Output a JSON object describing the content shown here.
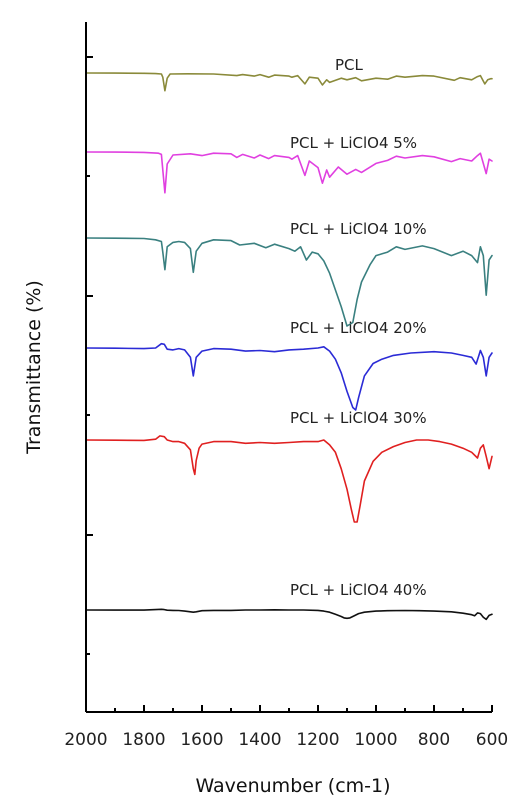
{
  "chart_data": {
    "type": "line",
    "title": "",
    "xlabel": "Wavenumber (cm-1)",
    "ylabel": "Transmittance (%)",
    "xlim": [
      2000,
      600
    ],
    "x_reversed": true,
    "x_ticks": [
      "2000",
      "1800",
      "1600",
      "1400",
      "1200",
      "1000",
      "800",
      "600"
    ],
    "y_tick_labels_shown": false,
    "grid": false,
    "legend": "none",
    "series_layout": "stacked traces with offsets, labeled directly above each trace",
    "series": [
      {
        "name": "PCL",
        "color": "#8a8a3a",
        "points": [
          [
            2000,
            0.0
          ],
          [
            1900,
            0.002
          ],
          [
            1800,
            0.006
          ],
          [
            1760,
            0.012
          ],
          [
            1740,
            0.02
          ],
          [
            1735,
            0.08
          ],
          [
            1728,
            0.34
          ],
          [
            1720,
            0.1
          ],
          [
            1710,
            0.02
          ],
          [
            1650,
            0.016
          ],
          [
            1560,
            0.02
          ],
          [
            1480,
            0.05
          ],
          [
            1460,
            0.03
          ],
          [
            1420,
            0.06
          ],
          [
            1400,
            0.03
          ],
          [
            1370,
            0.08
          ],
          [
            1350,
            0.04
          ],
          [
            1300,
            0.06
          ],
          [
            1290,
            0.08
          ],
          [
            1270,
            0.05
          ],
          [
            1245,
            0.21
          ],
          [
            1230,
            0.08
          ],
          [
            1200,
            0.1
          ],
          [
            1185,
            0.23
          ],
          [
            1170,
            0.13
          ],
          [
            1160,
            0.18
          ],
          [
            1120,
            0.1
          ],
          [
            1100,
            0.13
          ],
          [
            1070,
            0.09
          ],
          [
            1050,
            0.15
          ],
          [
            1000,
            0.1
          ],
          [
            960,
            0.12
          ],
          [
            930,
            0.06
          ],
          [
            900,
            0.08
          ],
          [
            840,
            0.05
          ],
          [
            800,
            0.06
          ],
          [
            730,
            0.14
          ],
          [
            710,
            0.09
          ],
          [
            670,
            0.13
          ],
          [
            650,
            0.07
          ],
          [
            640,
            0.05
          ],
          [
            625,
            0.21
          ],
          [
            615,
            0.13
          ],
          [
            605,
            0.11
          ],
          [
            600,
            0.11
          ]
        ]
      },
      {
        "name": "PCL + LiClO4 5%",
        "color": "#e040e0",
        "points": [
          [
            2000,
            0.0
          ],
          [
            1900,
            0.001
          ],
          [
            1800,
            0.006
          ],
          [
            1750,
            0.02
          ],
          [
            1740,
            0.04
          ],
          [
            1735,
            0.3
          ],
          [
            1728,
            0.68
          ],
          [
            1720,
            0.2
          ],
          [
            1700,
            0.05
          ],
          [
            1640,
            0.03
          ],
          [
            1600,
            0.06
          ],
          [
            1560,
            0.02
          ],
          [
            1500,
            0.03
          ],
          [
            1480,
            0.09
          ],
          [
            1460,
            0.04
          ],
          [
            1420,
            0.1
          ],
          [
            1400,
            0.05
          ],
          [
            1370,
            0.11
          ],
          [
            1350,
            0.06
          ],
          [
            1300,
            0.09
          ],
          [
            1290,
            0.12
          ],
          [
            1270,
            0.06
          ],
          [
            1245,
            0.39
          ],
          [
            1230,
            0.15
          ],
          [
            1200,
            0.26
          ],
          [
            1185,
            0.52
          ],
          [
            1170,
            0.3
          ],
          [
            1160,
            0.42
          ],
          [
            1130,
            0.25
          ],
          [
            1100,
            0.37
          ],
          [
            1070,
            0.29
          ],
          [
            1050,
            0.34
          ],
          [
            1000,
            0.19
          ],
          [
            960,
            0.14
          ],
          [
            930,
            0.07
          ],
          [
            900,
            0.1
          ],
          [
            840,
            0.06
          ],
          [
            800,
            0.08
          ],
          [
            740,
            0.16
          ],
          [
            710,
            0.11
          ],
          [
            670,
            0.15
          ],
          [
            650,
            0.06
          ],
          [
            640,
            0.02
          ],
          [
            630,
            0.19
          ],
          [
            620,
            0.36
          ],
          [
            610,
            0.12
          ],
          [
            600,
            0.15
          ]
        ]
      },
      {
        "name": "PCL + LiClO4 10%",
        "color": "#3a8080",
        "points": [
          [
            2000,
            0.0
          ],
          [
            1900,
            0.002
          ],
          [
            1800,
            0.006
          ],
          [
            1760,
            0.02
          ],
          [
            1740,
            0.04
          ],
          [
            1735,
            0.16
          ],
          [
            1728,
            0.36
          ],
          [
            1720,
            0.1
          ],
          [
            1700,
            0.05
          ],
          [
            1680,
            0.04
          ],
          [
            1660,
            0.05
          ],
          [
            1640,
            0.12
          ],
          [
            1630,
            0.39
          ],
          [
            1620,
            0.15
          ],
          [
            1600,
            0.06
          ],
          [
            1560,
            0.02
          ],
          [
            1500,
            0.03
          ],
          [
            1470,
            0.08
          ],
          [
            1420,
            0.06
          ],
          [
            1380,
            0.11
          ],
          [
            1350,
            0.07
          ],
          [
            1300,
            0.12
          ],
          [
            1280,
            0.15
          ],
          [
            1260,
            0.1
          ],
          [
            1240,
            0.25
          ],
          [
            1220,
            0.16
          ],
          [
            1200,
            0.18
          ],
          [
            1180,
            0.26
          ],
          [
            1160,
            0.4
          ],
          [
            1120,
            0.78
          ],
          [
            1100,
            1.0
          ],
          [
            1080,
            0.96
          ],
          [
            1065,
            0.7
          ],
          [
            1050,
            0.5
          ],
          [
            1020,
            0.3
          ],
          [
            1000,
            0.2
          ],
          [
            960,
            0.16
          ],
          [
            930,
            0.1
          ],
          [
            900,
            0.13
          ],
          [
            840,
            0.09
          ],
          [
            800,
            0.12
          ],
          [
            740,
            0.2
          ],
          [
            700,
            0.15
          ],
          [
            670,
            0.2
          ],
          [
            650,
            0.28
          ],
          [
            640,
            0.1
          ],
          [
            630,
            0.2
          ],
          [
            620,
            0.65
          ],
          [
            610,
            0.25
          ],
          [
            600,
            0.2
          ]
        ]
      },
      {
        "name": "PCL + LiClO4 20%",
        "color": "#2b2bd6",
        "points": [
          [
            2000,
            0.0
          ],
          [
            1900,
            0.004
          ],
          [
            1800,
            0.01
          ],
          [
            1760,
            0.0
          ],
          [
            1740,
            -0.07
          ],
          [
            1730,
            -0.06
          ],
          [
            1720,
            0.02
          ],
          [
            1700,
            0.03
          ],
          [
            1680,
            0.01
          ],
          [
            1660,
            0.03
          ],
          [
            1640,
            0.15
          ],
          [
            1630,
            0.45
          ],
          [
            1620,
            0.15
          ],
          [
            1600,
            0.05
          ],
          [
            1560,
            0.01
          ],
          [
            1500,
            0.02
          ],
          [
            1450,
            0.05
          ],
          [
            1400,
            0.04
          ],
          [
            1350,
            0.06
          ],
          [
            1300,
            0.03
          ],
          [
            1250,
            0.02
          ],
          [
            1200,
            0.0
          ],
          [
            1180,
            -0.02
          ],
          [
            1160,
            0.05
          ],
          [
            1140,
            0.18
          ],
          [
            1120,
            0.4
          ],
          [
            1100,
            0.7
          ],
          [
            1080,
            0.96
          ],
          [
            1070,
            1.0
          ],
          [
            1060,
            0.8
          ],
          [
            1040,
            0.45
          ],
          [
            1010,
            0.25
          ],
          [
            980,
            0.18
          ],
          [
            940,
            0.12
          ],
          [
            880,
            0.08
          ],
          [
            800,
            0.06
          ],
          [
            740,
            0.08
          ],
          [
            700,
            0.12
          ],
          [
            670,
            0.15
          ],
          [
            655,
            0.26
          ],
          [
            645,
            0.12
          ],
          [
            640,
            0.04
          ],
          [
            630,
            0.15
          ],
          [
            620,
            0.45
          ],
          [
            610,
            0.15
          ],
          [
            600,
            0.08
          ]
        ]
      },
      {
        "name": "PCL + LiClO4 30%",
        "color": "#e02020",
        "points": [
          [
            2000,
            0.0
          ],
          [
            1900,
            0.003
          ],
          [
            1800,
            0.005
          ],
          [
            1760,
            -0.01
          ],
          [
            1745,
            -0.05
          ],
          [
            1730,
            -0.04
          ],
          [
            1720,
            0.0
          ],
          [
            1700,
            0.02
          ],
          [
            1680,
            0.02
          ],
          [
            1660,
            0.04
          ],
          [
            1640,
            0.12
          ],
          [
            1630,
            0.35
          ],
          [
            1625,
            0.42
          ],
          [
            1620,
            0.25
          ],
          [
            1610,
            0.1
          ],
          [
            1600,
            0.05
          ],
          [
            1560,
            0.02
          ],
          [
            1500,
            0.02
          ],
          [
            1450,
            0.04
          ],
          [
            1400,
            0.03
          ],
          [
            1350,
            0.04
          ],
          [
            1300,
            0.03
          ],
          [
            1250,
            0.02
          ],
          [
            1200,
            0.02
          ],
          [
            1180,
            0.0
          ],
          [
            1160,
            0.06
          ],
          [
            1140,
            0.15
          ],
          [
            1120,
            0.35
          ],
          [
            1100,
            0.6
          ],
          [
            1085,
            0.85
          ],
          [
            1075,
            1.0
          ],
          [
            1065,
            1.0
          ],
          [
            1055,
            0.8
          ],
          [
            1040,
            0.5
          ],
          [
            1010,
            0.26
          ],
          [
            980,
            0.15
          ],
          [
            940,
            0.08
          ],
          [
            900,
            0.03
          ],
          [
            860,
            0.0
          ],
          [
            820,
            0.0
          ],
          [
            780,
            0.02
          ],
          [
            740,
            0.05
          ],
          [
            700,
            0.1
          ],
          [
            670,
            0.15
          ],
          [
            650,
            0.22
          ],
          [
            640,
            0.1
          ],
          [
            630,
            0.06
          ],
          [
            620,
            0.2
          ],
          [
            610,
            0.35
          ],
          [
            600,
            0.2
          ]
        ]
      },
      {
        "name": "PCL + LiClO4 40%",
        "color": "#111111",
        "points": [
          [
            2000,
            0.0
          ],
          [
            1900,
            0.002
          ],
          [
            1800,
            0.003
          ],
          [
            1760,
            -0.01
          ],
          [
            1740,
            -0.02
          ],
          [
            1730,
            -0.01
          ],
          [
            1720,
            0.005
          ],
          [
            1700,
            0.01
          ],
          [
            1680,
            0.015
          ],
          [
            1660,
            0.03
          ],
          [
            1640,
            0.05
          ],
          [
            1630,
            0.06
          ],
          [
            1620,
            0.05
          ],
          [
            1600,
            0.02
          ],
          [
            1560,
            0.01
          ],
          [
            1500,
            0.01
          ],
          [
            1450,
            0.0
          ],
          [
            1400,
            0.0
          ],
          [
            1350,
            -0.005
          ],
          [
            1300,
            0.0
          ],
          [
            1250,
            0.0
          ],
          [
            1200,
            0.01
          ],
          [
            1180,
            0.03
          ],
          [
            1160,
            0.06
          ],
          [
            1140,
            0.12
          ],
          [
            1120,
            0.18
          ],
          [
            1110,
            0.22
          ],
          [
            1100,
            0.23
          ],
          [
            1090,
            0.22
          ],
          [
            1080,
            0.18
          ],
          [
            1060,
            0.1
          ],
          [
            1040,
            0.06
          ],
          [
            1000,
            0.03
          ],
          [
            960,
            0.02
          ],
          [
            900,
            0.015
          ],
          [
            850,
            0.02
          ],
          [
            800,
            0.03
          ],
          [
            740,
            0.05
          ],
          [
            700,
            0.09
          ],
          [
            670,
            0.13
          ],
          [
            660,
            0.16
          ],
          [
            650,
            0.08
          ],
          [
            640,
            0.1
          ],
          [
            630,
            0.2
          ],
          [
            620,
            0.26
          ],
          [
            610,
            0.15
          ],
          [
            600,
            0.12
          ]
        ]
      }
    ]
  }
}
